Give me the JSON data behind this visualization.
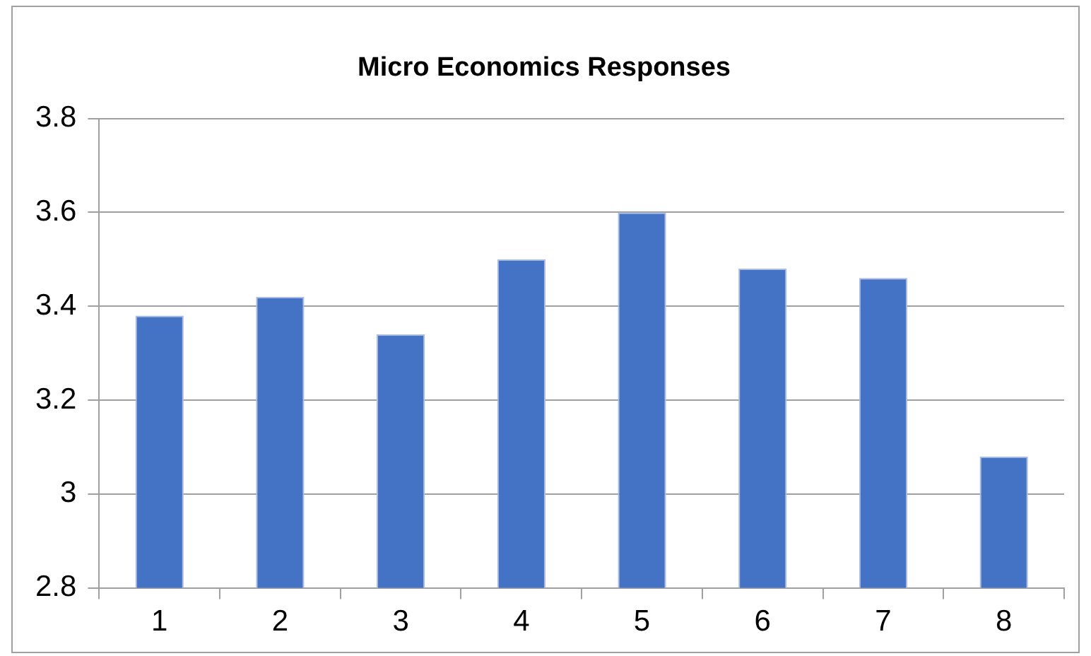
{
  "chart_data": {
    "type": "bar",
    "title": "Micro Economics Responses",
    "categories": [
      "1",
      "2",
      "3",
      "4",
      "5",
      "6",
      "7",
      "8"
    ],
    "values": [
      3.38,
      3.42,
      3.34,
      3.5,
      3.6,
      3.48,
      3.46,
      3.08
    ],
    "color": "#4472c4",
    "ylim": [
      2.8,
      3.8
    ],
    "yticks": [
      2.8,
      3,
      3.2,
      3.4,
      3.6,
      3.8
    ],
    "grid": "y",
    "legend": false
  }
}
